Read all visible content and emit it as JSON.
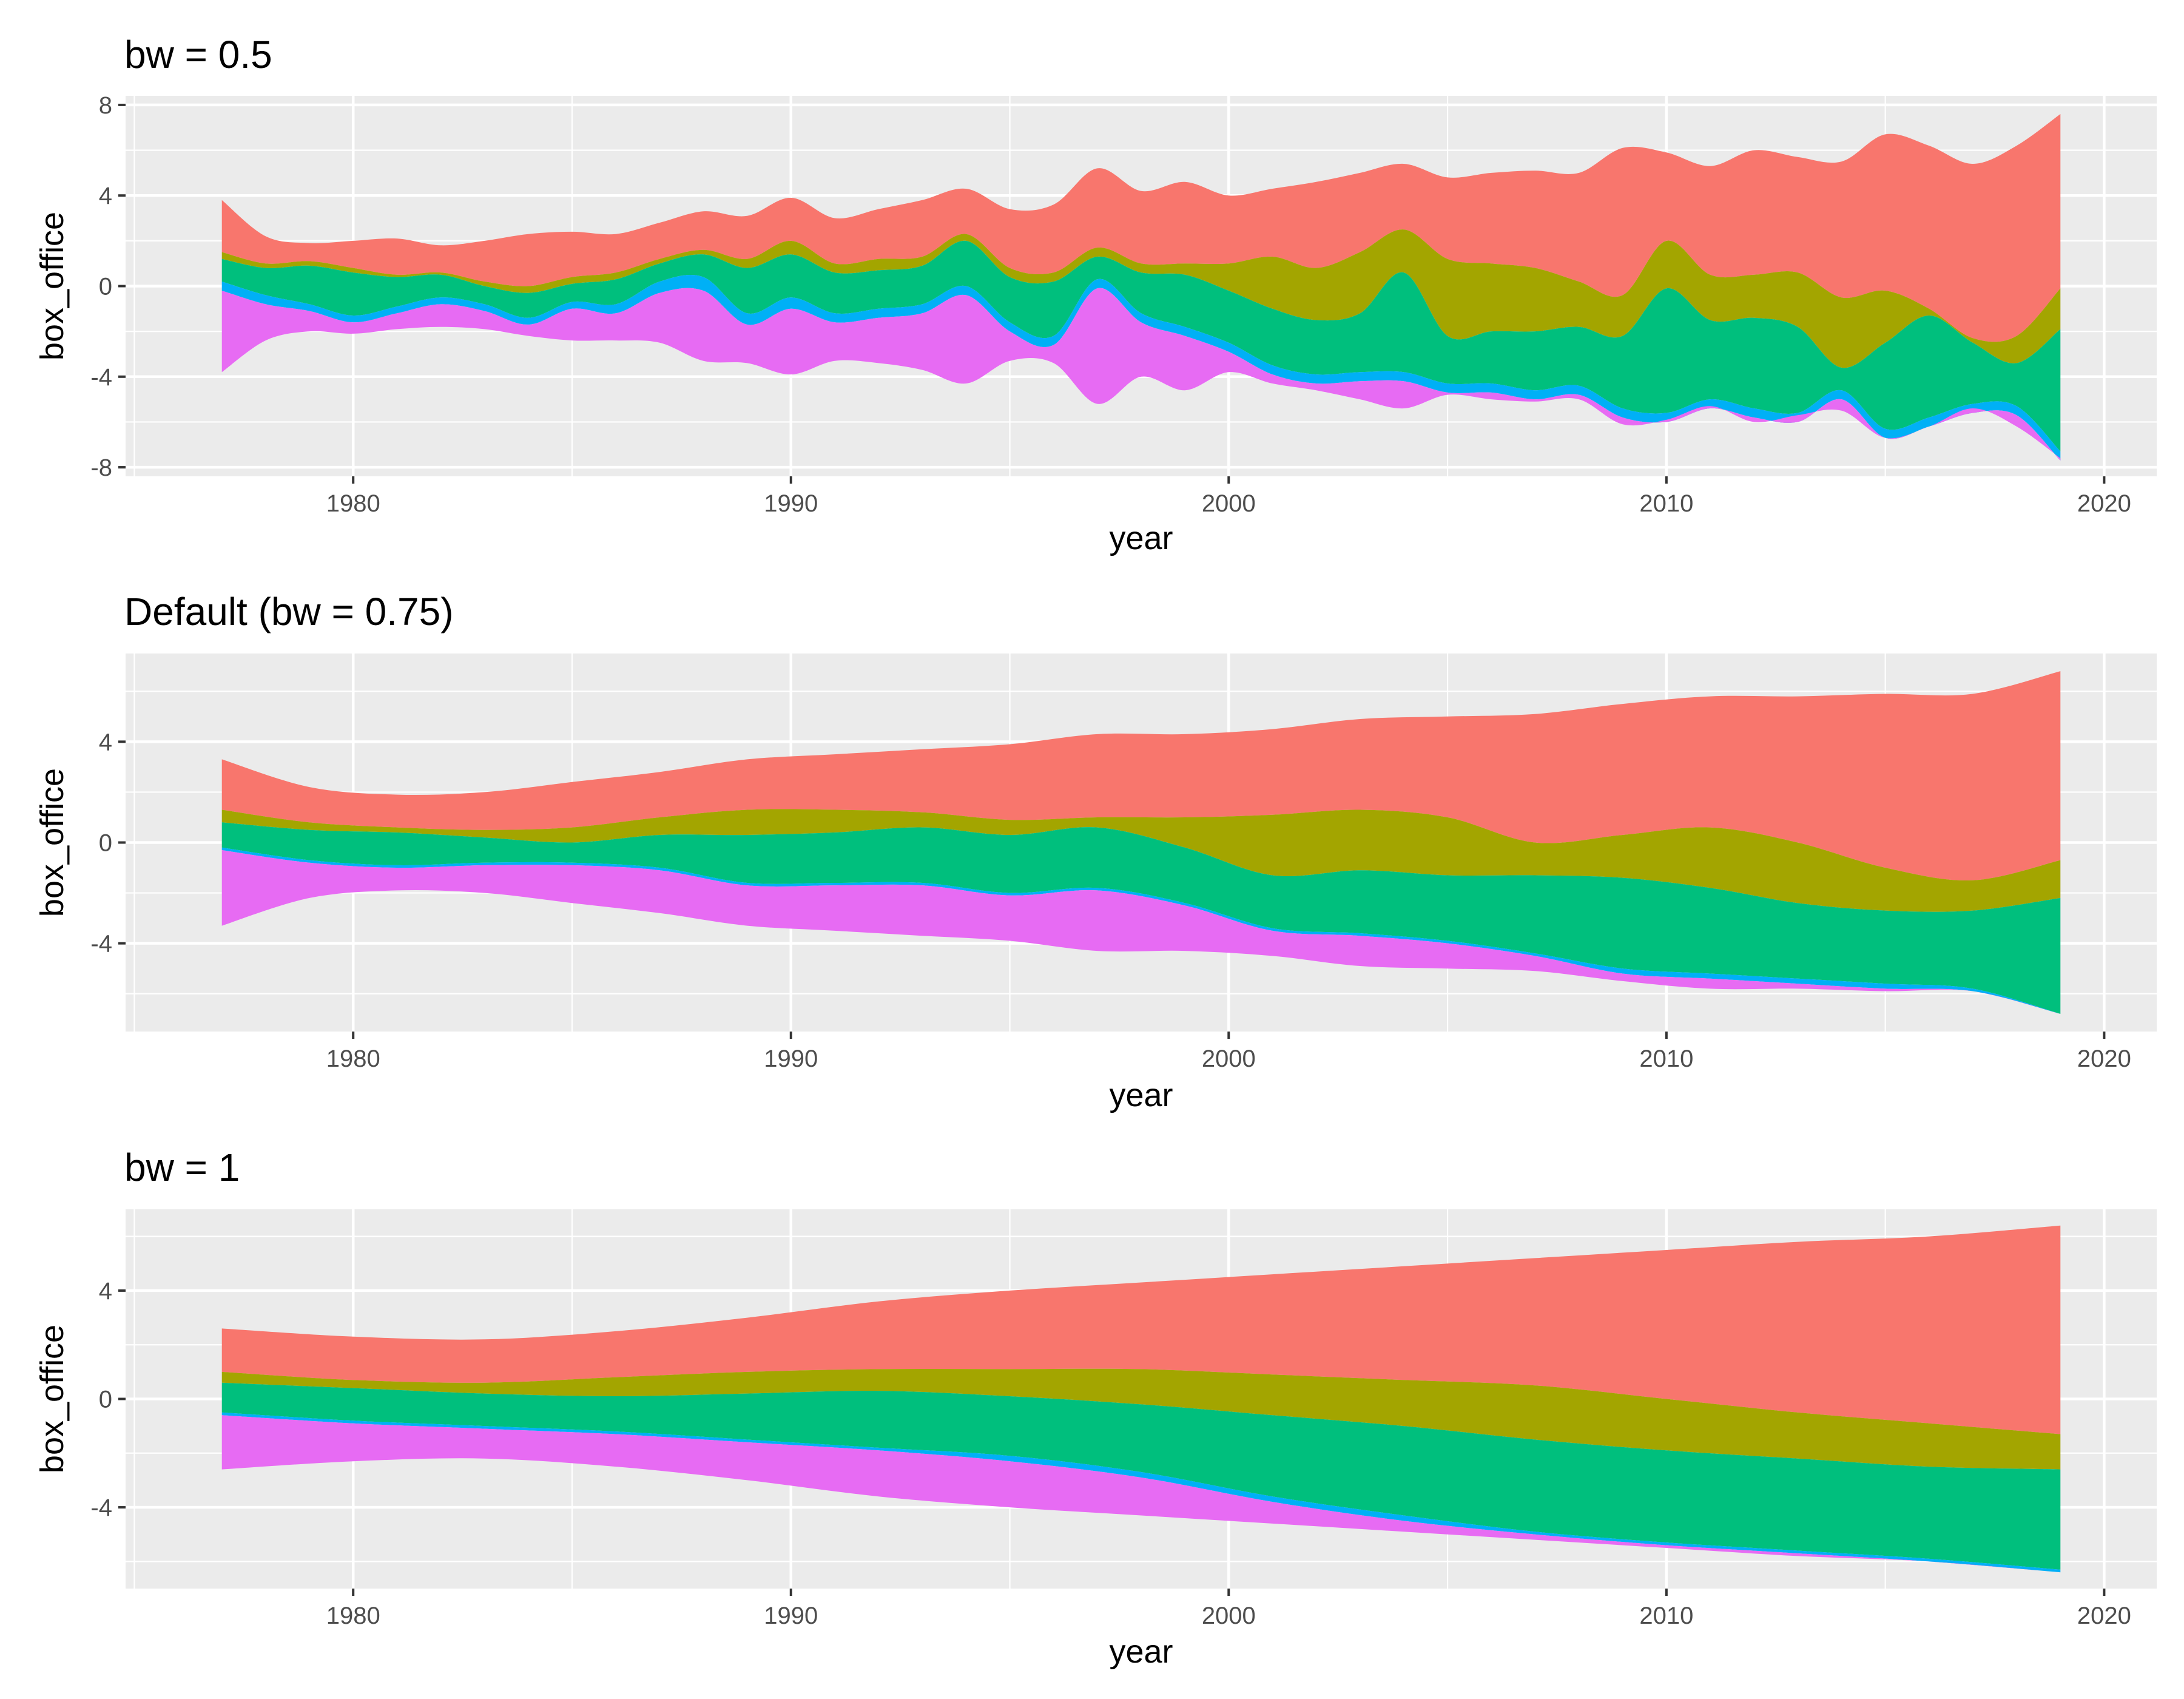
{
  "colors": {
    "s1": "#F8766D",
    "s2": "#A3A500",
    "s3": "#00BF7D",
    "s4": "#00B0F6",
    "s5": "#E76BF3",
    "panel": "#EBEBEB",
    "grid": "#FFFFFF"
  },
  "chart_data": [
    {
      "type": "area",
      "subtype": "streamgraph",
      "title": "bw = 0.5",
      "xlabel": "year",
      "ylabel": "box_office",
      "xlim": [
        1974.8,
        2021.2
      ],
      "ylim": [
        -8.4,
        8.4
      ],
      "xticks": [
        1980,
        1990,
        2000,
        2010,
        2020
      ],
      "xtick_labels": [
        "1980",
        "1990",
        "2000",
        "2010",
        "2020"
      ],
      "yticks": [
        -8,
        -4,
        0,
        4,
        8
      ],
      "ytick_labels": [
        "-8",
        "-4",
        "0",
        "4",
        "8"
      ],
      "x": [
        1977,
        1978,
        1979,
        1980,
        1981,
        1982,
        1983,
        1984,
        1985,
        1986,
        1987,
        1988,
        1989,
        1990,
        1991,
        1992,
        1993,
        1994,
        1995,
        1996,
        1997,
        1998,
        1999,
        2000,
        2001,
        2002,
        2003,
        2004,
        2005,
        2006,
        2007,
        2008,
        2009,
        2010,
        2011,
        2012,
        2013,
        2014,
        2015,
        2016,
        2017,
        2018,
        2019
      ],
      "boundaries": [
        [
          3.8,
          2.2,
          1.9,
          2.0,
          2.1,
          1.8,
          2.0,
          2.3,
          2.4,
          2.3,
          2.8,
          3.3,
          3.1,
          3.9,
          3.0,
          3.4,
          3.8,
          4.3,
          3.4,
          3.6,
          5.2,
          4.2,
          4.6,
          4.0,
          4.3,
          4.6,
          5.0,
          5.4,
          4.8,
          5.0,
          5.1,
          5.0,
          6.1,
          5.9,
          5.3,
          6.0,
          5.7,
          5.5,
          6.7,
          6.2,
          5.4,
          6.2,
          7.6
        ],
        [
          1.5,
          1.0,
          1.1,
          0.8,
          0.5,
          0.6,
          0.2,
          0.0,
          0.4,
          0.6,
          1.2,
          1.6,
          1.2,
          2.0,
          1.0,
          1.2,
          1.3,
          2.3,
          0.8,
          0.6,
          1.7,
          1.0,
          1.0,
          1.0,
          1.3,
          0.8,
          1.5,
          2.5,
          1.2,
          1.0,
          0.8,
          0.2,
          -0.4,
          2.0,
          0.5,
          0.5,
          0.6,
          -0.5,
          -0.2,
          -1.0,
          -2.3,
          -2.2,
          -0.1
        ],
        [
          1.2,
          0.8,
          0.9,
          0.6,
          0.4,
          0.5,
          0.0,
          -0.3,
          0.1,
          0.3,
          1.0,
          1.4,
          0.8,
          1.4,
          0.6,
          0.7,
          0.9,
          2.0,
          0.4,
          0.2,
          1.3,
          0.6,
          0.5,
          -0.2,
          -1.0,
          -1.5,
          -1.2,
          0.6,
          -2.2,
          -2.0,
          -2.0,
          -1.8,
          -2.2,
          -0.1,
          -1.5,
          -1.4,
          -1.8,
          -3.6,
          -2.5,
          -1.3,
          -2.5,
          -3.4,
          -1.9
        ],
        [
          0.2,
          -0.4,
          -0.8,
          -1.3,
          -0.9,
          -0.5,
          -0.8,
          -1.4,
          -0.7,
          -0.8,
          0.2,
          0.4,
          -1.2,
          -0.5,
          -1.2,
          -1.0,
          -0.8,
          0.0,
          -1.6,
          -2.2,
          0.3,
          -1.2,
          -1.8,
          -2.5,
          -3.5,
          -3.9,
          -3.8,
          -3.8,
          -4.3,
          -4.3,
          -4.6,
          -4.4,
          -5.4,
          -5.6,
          -5.0,
          -5.4,
          -5.6,
          -4.6,
          -6.3,
          -5.8,
          -5.2,
          -5.3,
          -7.3
        ],
        [
          -0.2,
          -0.8,
          -1.1,
          -1.6,
          -1.2,
          -0.8,
          -1.1,
          -1.7,
          -1.0,
          -1.2,
          -0.3,
          -0.2,
          -1.7,
          -1.0,
          -1.6,
          -1.4,
          -1.2,
          -0.4,
          -2.0,
          -2.6,
          -0.1,
          -1.6,
          -2.2,
          -2.9,
          -3.9,
          -4.3,
          -4.2,
          -4.2,
          -4.7,
          -4.7,
          -5.0,
          -4.8,
          -5.8,
          -6.0,
          -5.4,
          -5.8,
          -6.0,
          -5.0,
          -6.7,
          -6.2,
          -5.6,
          -5.7,
          -7.7
        ],
        [
          -3.8,
          -2.4,
          -2.0,
          -2.1,
          -1.9,
          -1.8,
          -1.9,
          -2.2,
          -2.4,
          -2.4,
          -2.5,
          -3.3,
          -3.4,
          -3.9,
          -3.3,
          -3.4,
          -3.7,
          -4.3,
          -3.3,
          -3.4,
          -5.2,
          -4.0,
          -4.6,
          -3.8,
          -4.3,
          -4.6,
          -5.0,
          -5.4,
          -4.8,
          -5.0,
          -5.1,
          -5.0,
          -6.1,
          -5.9,
          -5.3,
          -6.0,
          -5.7,
          -5.5,
          -6.7,
          -6.2,
          -5.4,
          -6.2,
          -7.6
        ]
      ]
    },
    {
      "type": "area",
      "subtype": "streamgraph",
      "title": "Default (bw = 0.75)",
      "xlabel": "year",
      "ylabel": "box_office",
      "xlim": [
        1974.8,
        2021.2
      ],
      "ylim": [
        -7.5,
        7.5
      ],
      "xticks": [
        1980,
        1990,
        2000,
        2010,
        2020
      ],
      "xtick_labels": [
        "1980",
        "1990",
        "2000",
        "2010",
        "2020"
      ],
      "yticks": [
        -4,
        0,
        4
      ],
      "ytick_labels": [
        "-4",
        "0",
        "4"
      ],
      "x": [
        1977,
        1979,
        1981,
        1983,
        1985,
        1987,
        1989,
        1991,
        1993,
        1995,
        1997,
        1999,
        2001,
        2003,
        2005,
        2007,
        2009,
        2011,
        2013,
        2015,
        2017,
        2019
      ],
      "boundaries": [
        [
          3.3,
          2.2,
          1.9,
          2.0,
          2.4,
          2.8,
          3.3,
          3.5,
          3.7,
          3.9,
          4.3,
          4.3,
          4.5,
          4.9,
          5.0,
          5.1,
          5.5,
          5.8,
          5.8,
          5.9,
          5.9,
          6.8
        ],
        [
          1.3,
          0.8,
          0.6,
          0.5,
          0.6,
          1.0,
          1.3,
          1.3,
          1.2,
          0.9,
          1.0,
          1.0,
          1.1,
          1.3,
          1.0,
          0.0,
          0.3,
          0.6,
          0.0,
          -1.0,
          -1.5,
          -0.7
        ],
        [
          0.8,
          0.5,
          0.4,
          0.2,
          0.0,
          0.3,
          0.3,
          0.4,
          0.6,
          0.3,
          0.6,
          -0.2,
          -1.3,
          -1.1,
          -1.3,
          -1.3,
          -1.4,
          -1.8,
          -2.4,
          -2.7,
          -2.7,
          -2.2
        ],
        [
          -0.2,
          -0.7,
          -0.9,
          -0.8,
          -0.8,
          -1.0,
          -1.6,
          -1.6,
          -1.6,
          -2.0,
          -1.8,
          -2.4,
          -3.4,
          -3.6,
          -3.9,
          -4.4,
          -5.0,
          -5.2,
          -5.4,
          -5.6,
          -5.8,
          -6.8
        ],
        [
          -0.3,
          -0.8,
          -1.0,
          -0.9,
          -0.9,
          -1.1,
          -1.7,
          -1.7,
          -1.7,
          -2.1,
          -1.9,
          -2.5,
          -3.5,
          -3.7,
          -4.0,
          -4.5,
          -5.2,
          -5.4,
          -5.6,
          -5.8,
          -5.9,
          -6.8
        ],
        [
          -3.3,
          -2.2,
          -1.9,
          -2.0,
          -2.4,
          -2.8,
          -3.3,
          -3.5,
          -3.7,
          -3.9,
          -4.3,
          -4.3,
          -4.5,
          -4.9,
          -5.0,
          -5.1,
          -5.5,
          -5.8,
          -5.8,
          -5.9,
          -5.9,
          -6.8
        ]
      ]
    },
    {
      "type": "area",
      "subtype": "streamgraph",
      "title": "bw = 1",
      "xlabel": "year",
      "ylabel": "box_office",
      "xlim": [
        1974.8,
        2021.2
      ],
      "ylim": [
        -7.0,
        7.0
      ],
      "xticks": [
        1980,
        1990,
        2000,
        2010,
        2020
      ],
      "xtick_labels": [
        "1980",
        "1990",
        "2000",
        "2010",
        "2020"
      ],
      "yticks": [
        -4,
        0,
        4
      ],
      "ytick_labels": [
        "-4",
        "0",
        "4"
      ],
      "x": [
        1977,
        1980,
        1983,
        1986,
        1989,
        1992,
        1995,
        1998,
        2001,
        2004,
        2007,
        2010,
        2013,
        2016,
        2019
      ],
      "boundaries": [
        [
          2.6,
          2.3,
          2.2,
          2.5,
          3.0,
          3.6,
          4.0,
          4.3,
          4.6,
          4.9,
          5.2,
          5.5,
          5.8,
          6.0,
          6.4
        ],
        [
          1.0,
          0.7,
          0.6,
          0.8,
          1.0,
          1.1,
          1.1,
          1.1,
          0.9,
          0.7,
          0.5,
          0.0,
          -0.5,
          -0.9,
          -1.3
        ],
        [
          0.6,
          0.4,
          0.2,
          0.1,
          0.2,
          0.3,
          0.1,
          -0.2,
          -0.6,
          -1.0,
          -1.5,
          -1.9,
          -2.2,
          -2.5,
          -2.6
        ],
        [
          -0.5,
          -0.8,
          -1.0,
          -1.2,
          -1.5,
          -1.8,
          -2.1,
          -2.7,
          -3.6,
          -4.3,
          -4.9,
          -5.3,
          -5.6,
          -5.9,
          -6.3
        ],
        [
          -0.6,
          -0.9,
          -1.1,
          -1.3,
          -1.6,
          -1.9,
          -2.3,
          -2.9,
          -3.8,
          -4.5,
          -5.0,
          -5.4,
          -5.7,
          -6.0,
          -6.4
        ],
        [
          -2.6,
          -2.3,
          -2.2,
          -2.5,
          -3.0,
          -3.6,
          -4.0,
          -4.3,
          -4.6,
          -4.9,
          -5.2,
          -5.5,
          -5.8,
          -6.0,
          -6.4
        ]
      ]
    }
  ]
}
